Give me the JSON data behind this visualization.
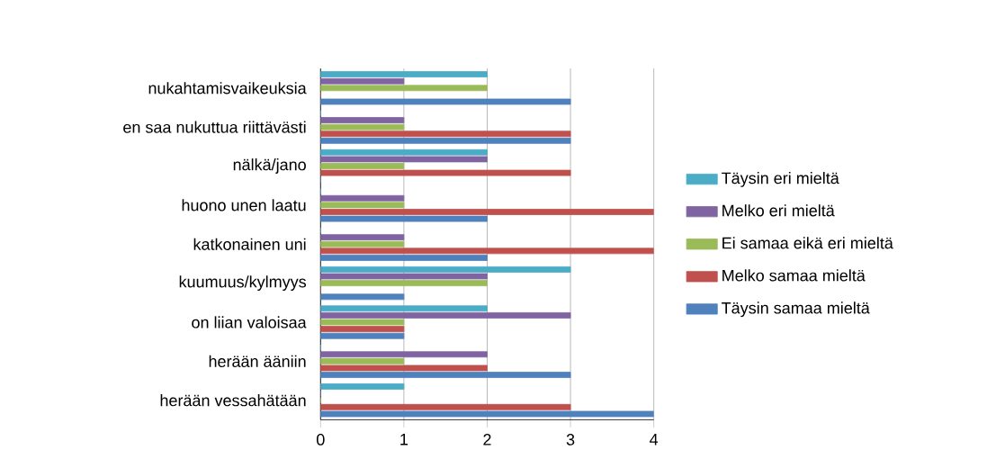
{
  "chart_data": {
    "type": "bar",
    "orientation": "horizontal",
    "categories": [
      "nukahtamisvaikeuksia",
      "en saa nukuttua riittävästi",
      "nälkä/jano",
      "huono unen laatu",
      "katkonainen uni",
      "kuumuus/kylmyys",
      "on liian valoisaa",
      "herään ääniin",
      "herään vessahätään"
    ],
    "series": [
      {
        "name": "Täysin eri mieltä",
        "color": "#4bacc6",
        "values": [
          2,
          0,
          2,
          0,
          0,
          3,
          2,
          0,
          1
        ]
      },
      {
        "name": "Melko eri mieltä",
        "color": "#8064a2",
        "values": [
          1,
          1,
          2,
          1,
          1,
          2,
          3,
          2,
          0
        ]
      },
      {
        "name": "Ei samaa eikä eri mieltä",
        "color": "#9bbb59",
        "values": [
          2,
          1,
          1,
          1,
          1,
          2,
          1,
          1,
          0
        ]
      },
      {
        "name": "Melko samaa mieltä",
        "color": "#c0504d",
        "values": [
          0,
          3,
          3,
          4,
          4,
          0,
          1,
          2,
          3
        ]
      },
      {
        "name": "Täysin samaa mieltä",
        "color": "#4f81bd",
        "values": [
          3,
          3,
          0,
          2,
          2,
          1,
          1,
          3,
          4
        ]
      }
    ],
    "xlim": [
      0,
      4
    ],
    "xticks": [
      0,
      1,
      2,
      3,
      4
    ],
    "grid": "x",
    "legend": "right"
  }
}
